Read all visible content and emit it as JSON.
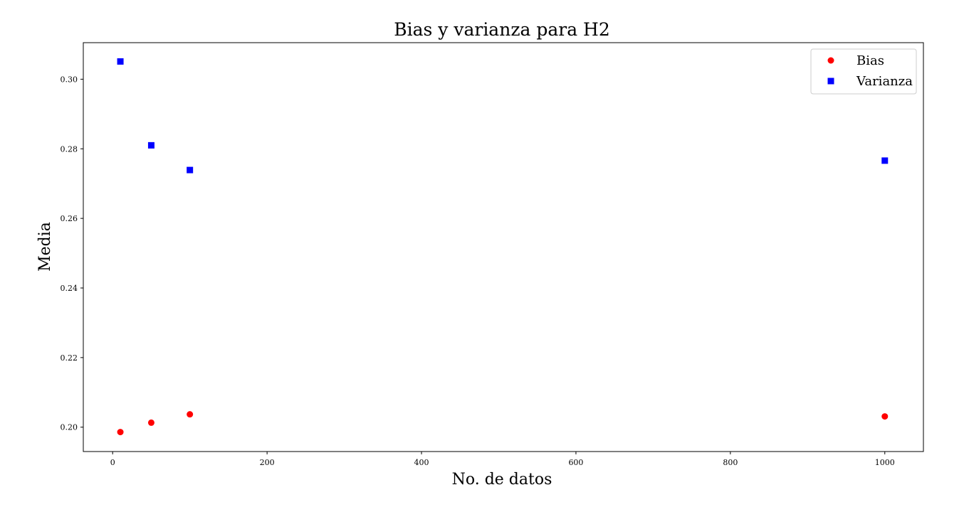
{
  "chart_data": {
    "type": "scatter",
    "title": "Bias y varianza para H2",
    "xlabel": "No. de datos",
    "ylabel": "Media",
    "xlim": [
      -38,
      1050
    ],
    "ylim": [
      0.193,
      0.3105
    ],
    "xticks": [
      0,
      200,
      400,
      600,
      800,
      1000
    ],
    "xtick_labels": [
      "0",
      "200",
      "400",
      "600",
      "800",
      "1000"
    ],
    "yticks": [
      0.2,
      0.22,
      0.24,
      0.26,
      0.28,
      0.3
    ],
    "ytick_labels": [
      "0.20",
      "0.22",
      "0.24",
      "0.26",
      "0.28",
      "0.30"
    ],
    "grid": false,
    "legend_position": "top-right",
    "series": [
      {
        "name": "Bias",
        "marker": "circle",
        "color": "#ff0000",
        "points": [
          {
            "x": 10,
            "y": 0.1986
          },
          {
            "x": 50,
            "y": 0.2013
          },
          {
            "x": 100,
            "y": 0.2037
          },
          {
            "x": 1000,
            "y": 0.2031
          }
        ]
      },
      {
        "name": "Varianza",
        "marker": "square",
        "color": "#0000ff",
        "points": [
          {
            "x": 10,
            "y": 0.3051
          },
          {
            "x": 50,
            "y": 0.281
          },
          {
            "x": 100,
            "y": 0.2739
          },
          {
            "x": 1000,
            "y": 0.2766
          }
        ]
      }
    ]
  }
}
